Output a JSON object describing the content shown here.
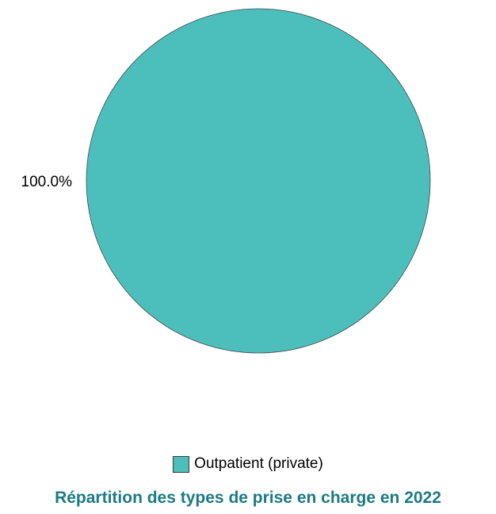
{
  "chart_data": {
    "type": "pie",
    "title": "Répartition des types de prise en charge en 2022",
    "categories": [
      "Outpatient (private)"
    ],
    "values": [
      100.0
    ],
    "slice_labels": [
      "100.0%"
    ],
    "colors": [
      "#4cbfbc"
    ],
    "legend": {
      "placement": "bottom",
      "entries": [
        "Outpatient (private)"
      ]
    },
    "title_color": "#1b7a84"
  }
}
